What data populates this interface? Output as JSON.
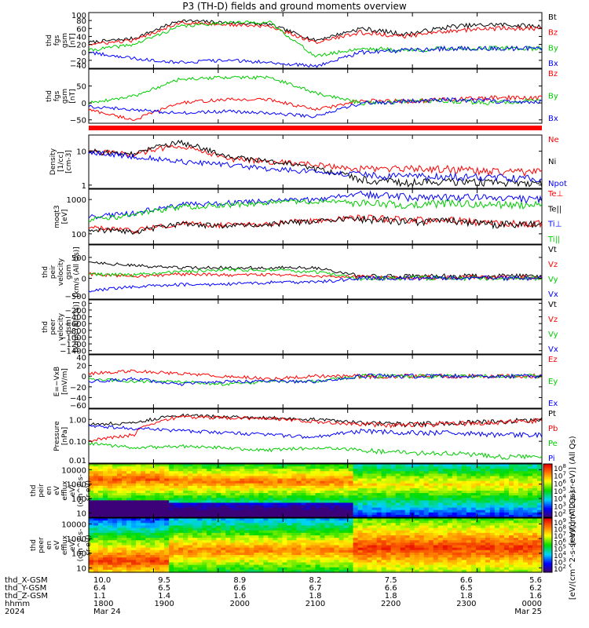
{
  "title": "P3 (TH-D) fields and ground moments overview",
  "chart_data": {
    "type": "line",
    "x_axis": {
      "start": "2024-03-24 17:00",
      "end": "2024-03-25 00:00",
      "tick_labels": [
        "1800",
        "1900",
        "2000",
        "2100",
        "2200",
        "2300",
        "0000"
      ],
      "rows": [
        {
          "label": "thd_X-GSM",
          "values": [
            "10.0",
            "9.5",
            "8.9",
            "8.2",
            "7.5",
            "6.6",
            "5.6"
          ]
        },
        {
          "label": "thd_Y-GSM",
          "values": [
            "6.4",
            "6.5",
            "6.6",
            "6.7",
            "6.6",
            "6.5",
            "6.2"
          ]
        },
        {
          "label": "thd_Z-GSM",
          "values": [
            "1.1",
            "1.4",
            "1.6",
            "1.8",
            "1.8",
            "1.8",
            "1.6"
          ]
        },
        {
          "label": "hhmm",
          "values": [
            "1800",
            "1900",
            "2000",
            "2100",
            "2200",
            "2300",
            "0000"
          ]
        },
        {
          "label": "2024",
          "values": [
            "Mar 24",
            "",
            "",
            "",
            "",
            "",
            "Mar 25"
          ]
        }
      ]
    },
    "panels": [
      {
        "id": "fgs_gsm_bt",
        "ylabel": [
          "thd",
          "fgs",
          "gsm",
          "[nT]"
        ],
        "ylim": [
          -40,
          100
        ],
        "yticks": [
          "100",
          "80",
          "60",
          "40",
          "20",
          "0",
          "−20",
          "−40"
        ],
        "series": [
          {
            "name": "Bt",
            "color": "#000000",
            "values": [
              25,
              35,
              80,
              75,
              70,
              30,
              60,
              45,
              65,
              70,
              65
            ]
          },
          {
            "name": "Bz",
            "color": "#ff0000",
            "values": [
              20,
              30,
              75,
              70,
              65,
              25,
              50,
              40,
              55,
              60,
              60
            ]
          },
          {
            "name": "By",
            "color": "#00cc00",
            "values": [
              5,
              20,
              65,
              75,
              75,
              -10,
              10,
              5,
              10,
              10,
              10
            ]
          },
          {
            "name": "Bx",
            "color": "#0000ff",
            "values": [
              0,
              -15,
              -25,
              -20,
              -25,
              -35,
              0,
              5,
              10,
              10,
              10
            ]
          }
        ]
      },
      {
        "id": "fgs_gsm_components",
        "ylabel": [
          "thd",
          "fgs",
          "gsm",
          "[nT]"
        ],
        "ylim": [
          -60,
          100
        ],
        "yticks": [
          "50",
          "0",
          "−50"
        ],
        "series": [
          {
            "name": "Bz",
            "color": "#ff0000",
            "values": [
              -20,
              -50,
              0,
              10,
              10,
              -20,
              5,
              5,
              10,
              15,
              15
            ]
          },
          {
            "name": "By",
            "color": "#00cc00",
            "values": [
              0,
              20,
              70,
              75,
              75,
              30,
              0,
              5,
              5,
              0,
              10
            ]
          },
          {
            "name": "Bx",
            "color": "#0000ff",
            "values": [
              -10,
              -20,
              -30,
              -25,
              -30,
              -40,
              0,
              5,
              10,
              5,
              5
            ]
          }
        ]
      },
      {
        "id": "density",
        "ylabel": [
          "Density",
          "[1/cc]",
          "[cm-3]"
        ],
        "scale": "log",
        "ylim": [
          0.8,
          30
        ],
        "yticks": [
          "10",
          "1"
        ],
        "series": [
          {
            "name": "Ne",
            "color": "#ff0000",
            "values": [
              10,
              8,
              15,
              6,
              5,
              4,
              3,
              3,
              3,
              2.5,
              2.5
            ]
          },
          {
            "name": "Ni",
            "color": "#000000",
            "values": [
              10,
              8,
              18,
              7,
              5,
              3,
              1.5,
              1.2,
              1.3,
              1.2,
              1.1
            ]
          },
          {
            "name": "Npot",
            "color": "#0000ff",
            "values": [
              9,
              7,
              5,
              4,
              3,
              2.5,
              2,
              1.8,
              1.8,
              1.7,
              1.6
            ]
          }
        ]
      },
      {
        "id": "temperature",
        "ylabel": [
          "moqt3",
          "[eV]"
        ],
        "scale": "log",
        "ylim": [
          50,
          2000
        ],
        "yticks": [
          "1000",
          "100"
        ],
        "series": [
          {
            "name": "Te⊥",
            "color": "#ff0000",
            "values": [
              150,
              120,
              200,
              180,
              200,
              250,
              300,
              250,
              250,
              200,
              200
            ]
          },
          {
            "name": "Te||",
            "color": "#000000",
            "values": [
              140,
              110,
              190,
              170,
              190,
              240,
              280,
              230,
              240,
              190,
              190
            ]
          },
          {
            "name": "Ti⊥",
            "color": "#0000ff",
            "values": [
              300,
              400,
              700,
              800,
              900,
              1000,
              1500,
              1200,
              1200,
              1100,
              1000
            ]
          },
          {
            "name": "Ti||",
            "color": "#00cc00",
            "values": [
              250,
              350,
              600,
              700,
              800,
              900,
              800,
              700,
              800,
              700,
              700
            ]
          }
        ]
      },
      {
        "id": "peir_velocity",
        "ylabel": [
          "thd",
          "peir",
          "velocity",
          "gsm",
          "[km/s (All Qs)]"
        ],
        "ylim": [
          -500,
          800
        ],
        "yticks": [
          "500",
          "0",
          "−500"
        ],
        "series": [
          {
            "name": "Vt",
            "color": "#000000",
            "values": [
              400,
              300,
              250,
              250,
              250,
              250,
              50,
              50,
              50,
              50,
              50
            ]
          },
          {
            "name": "Vz",
            "color": "#ff0000",
            "values": [
              100,
              50,
              100,
              80,
              80,
              60,
              20,
              20,
              20,
              20,
              20
            ]
          },
          {
            "name": "Vy",
            "color": "#00cc00",
            "values": [
              100,
              80,
              150,
              200,
              200,
              150,
              0,
              10,
              0,
              0,
              0
            ]
          },
          {
            "name": "Vx",
            "color": "#0000ff",
            "values": [
              -300,
              -200,
              -150,
              -150,
              -100,
              -100,
              0,
              0,
              0,
              0,
              0
            ]
          }
        ]
      },
      {
        "id": "peer_velocity",
        "ylabel": [
          "thd",
          "peer",
          "velocity",
          "gsm",
          "[km/s (All Qs)]"
        ],
        "ylim": [
          -1500,
          100
        ],
        "yticks": [
          "0",
          "−200",
          "−400",
          "−600",
          "−800",
          "−1000",
          "−1200",
          "−1400"
        ],
        "series": [
          {
            "name": "Vt",
            "color": "#000000",
            "values": []
          },
          {
            "name": "Vz",
            "color": "#ff0000",
            "values": []
          },
          {
            "name": "Vy",
            "color": "#00cc00",
            "values": []
          },
          {
            "name": "Vx",
            "color": "#0000ff",
            "values": []
          }
        ]
      },
      {
        "id": "efield",
        "ylabel": [
          "E=−VxB",
          "[mV/m]"
        ],
        "ylim": [
          -60,
          40
        ],
        "yticks": [
          "40",
          "20",
          "0",
          "−20",
          "−40",
          "−60"
        ],
        "series": [
          {
            "name": "Ez",
            "color": "#ff0000",
            "values": [
              5,
              10,
              5,
              0,
              -5,
              0,
              0,
              0,
              0,
              0,
              0
            ]
          },
          {
            "name": "Ey",
            "color": "#00cc00",
            "values": [
              -5,
              -10,
              -10,
              -15,
              -10,
              -10,
              0,
              0,
              0,
              0,
              0
            ]
          },
          {
            "name": "Ex",
            "color": "#0000ff",
            "values": [
              -10,
              -5,
              -15,
              -10,
              -10,
              -10,
              0,
              0,
              0,
              0,
              0
            ]
          }
        ]
      },
      {
        "id": "pressure",
        "ylabel": [
          "Pressure",
          "[nPa]"
        ],
        "scale": "log",
        "ylim": [
          0.01,
          3
        ],
        "yticks": [
          "1.00",
          "0.10",
          "0.01"
        ],
        "series": [
          {
            "name": "Pt",
            "color": "#000000",
            "values": [
              0.6,
              0.7,
              1.5,
              1.3,
              1.2,
              1.0,
              0.7,
              0.6,
              0.7,
              0.8,
              1.0
            ]
          },
          {
            "name": "Pb",
            "color": "#ff0000",
            "values": [
              0.1,
              0.2,
              1.3,
              1.2,
              1.1,
              0.8,
              0.6,
              0.55,
              0.65,
              0.75,
              0.9
            ]
          },
          {
            "name": "Pe",
            "color": "#00cc00",
            "values": [
              0.08,
              0.05,
              0.06,
              0.05,
              0.04,
              0.05,
              0.04,
              0.03,
              0.03,
              0.02,
              0.02
            ]
          },
          {
            "name": "Pi",
            "color": "#0000ff",
            "values": [
              0.5,
              0.4,
              0.3,
              0.25,
              0.2,
              0.15,
              0.3,
              0.25,
              0.25,
              0.2,
              0.2
            ]
          }
        ]
      },
      {
        "id": "peir_eflux",
        "type": "heatmap",
        "ylabel": [
          "thd",
          "peir",
          "en",
          "eV",
          "efflux",
          "eV/",
          "(cm^2-s-",
          "sr-eV)"
        ],
        "scale": "log",
        "ylim": [
          5,
          25000
        ],
        "yticks": [
          "10000",
          "1000",
          "100",
          "10"
        ],
        "colorbar": {
          "label": "[eV/(cm^2-s-sr-eV)] (All Qs)",
          "ticks": [
            "10^8",
            "10^7",
            "10^6",
            "10^5",
            "10^4",
            "10^3",
            "10^2"
          ]
        }
      },
      {
        "id": "peer_eflux",
        "type": "heatmap",
        "ylabel": [
          "thd",
          "peer",
          "en",
          "eV",
          "efflux",
          "eV/",
          "(cm^2-s-",
          "sr-eV)"
        ],
        "scale": "log",
        "ylim": [
          5,
          25000
        ],
        "yticks": [
          "10000",
          "1000",
          "100",
          "10"
        ],
        "colorbar": {
          "label": "[eV/(cm^2-s-sr-eV)] (All Qs)",
          "ticks": [
            "10^9",
            "10^8",
            "10^7",
            "10^6",
            "10^5",
            "10^4",
            "10^3",
            "10^2"
          ]
        }
      }
    ]
  }
}
